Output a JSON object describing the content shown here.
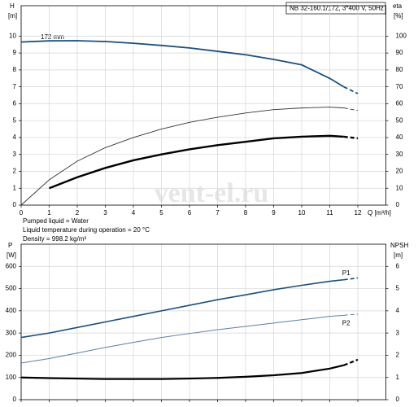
{
  "chart_data": [
    {
      "type": "line",
      "title": "NB 32-160.1/172, 3*400 V, 50Hz",
      "y_label": "H",
      "y_unit": "[m]",
      "y2_label": "eta",
      "y2_unit": "[%]",
      "x_label": "Q [m³/h]",
      "annotation": "172 mm",
      "watermark": "vent-el.ru",
      "grid": true,
      "x": [
        0,
        1,
        2,
        3,
        4,
        5,
        6,
        7,
        8,
        9,
        10,
        11,
        11.5,
        12
      ],
      "xlim": [
        0,
        13
      ],
      "xticks": [
        0,
        1,
        2,
        3,
        4,
        5,
        6,
        7,
        8,
        9,
        10,
        11,
        12
      ],
      "ylim": [
        0,
        11.8
      ],
      "yticks": [
        0,
        1,
        2,
        3,
        4,
        5,
        6,
        7,
        8,
        9,
        10
      ],
      "y2lim": [
        0,
        118
      ],
      "y2ticks": [
        0,
        10,
        20,
        30,
        40,
        50,
        60,
        70,
        80,
        90,
        100
      ],
      "series": [
        {
          "color": "#1d4f7c",
          "values": [
            9.65,
            9.72,
            9.73,
            9.68,
            9.58,
            9.45,
            9.3,
            9.1,
            8.9,
            8.62,
            8.3,
            7.5,
            7.0,
            6.6
          ]
        },
        {
          "color": "#333333",
          "axis": "y2",
          "values": [
            0,
            15,
            26,
            34,
            40,
            45,
            49,
            52,
            54.5,
            56.5,
            57.5,
            58,
            57.5,
            56
          ]
        },
        {
          "color": "#000000",
          "axis": "y2",
          "values": [
            null,
            10,
            16.5,
            22,
            26.5,
            30,
            33,
            35.5,
            37.5,
            39.5,
            40.5,
            41,
            40.5,
            39.5
          ]
        }
      ]
    },
    {
      "type": "line",
      "y_label": "P",
      "y_unit": "[W]",
      "y2_label": "NPSH",
      "y2_unit": "[m]",
      "grid": true,
      "x": [
        0,
        1,
        2,
        3,
        4,
        5,
        6,
        7,
        8,
        9,
        10,
        11,
        11.5,
        12
      ],
      "xlim": [
        0,
        13
      ],
      "xticks": [
        0,
        1,
        2,
        3,
        4,
        5,
        6,
        7,
        8,
        9,
        10,
        11,
        12
      ],
      "ylim": [
        0,
        700
      ],
      "yticks": [
        0,
        100,
        200,
        300,
        400,
        500,
        600
      ],
      "y2lim": [
        0,
        7
      ],
      "y2ticks": [
        0,
        1,
        2,
        3,
        4,
        5,
        6
      ],
      "series": [
        {
          "name": "P1",
          "color": "#1d4f7c",
          "values": [
            280,
            300,
            325,
            350,
            375,
            400,
            425,
            450,
            472,
            495,
            515,
            533,
            540,
            548
          ]
        },
        {
          "name": "P2",
          "color": "#5b7fa6",
          "values": [
            165,
            185,
            210,
            235,
            258,
            280,
            298,
            315,
            330,
            345,
            360,
            375,
            380,
            385
          ]
        },
        {
          "color": "#000000",
          "axis": "y2",
          "values": [
            1.0,
            0.97,
            0.95,
            0.93,
            0.93,
            0.93,
            0.95,
            0.98,
            1.03,
            1.1,
            1.2,
            1.4,
            1.55,
            1.8
          ]
        }
      ]
    }
  ],
  "notes": [
    "Pumped liquid = Water",
    "Liquid temperature during operation = 20 °C",
    "Density = 998.2 kg/m³"
  ]
}
